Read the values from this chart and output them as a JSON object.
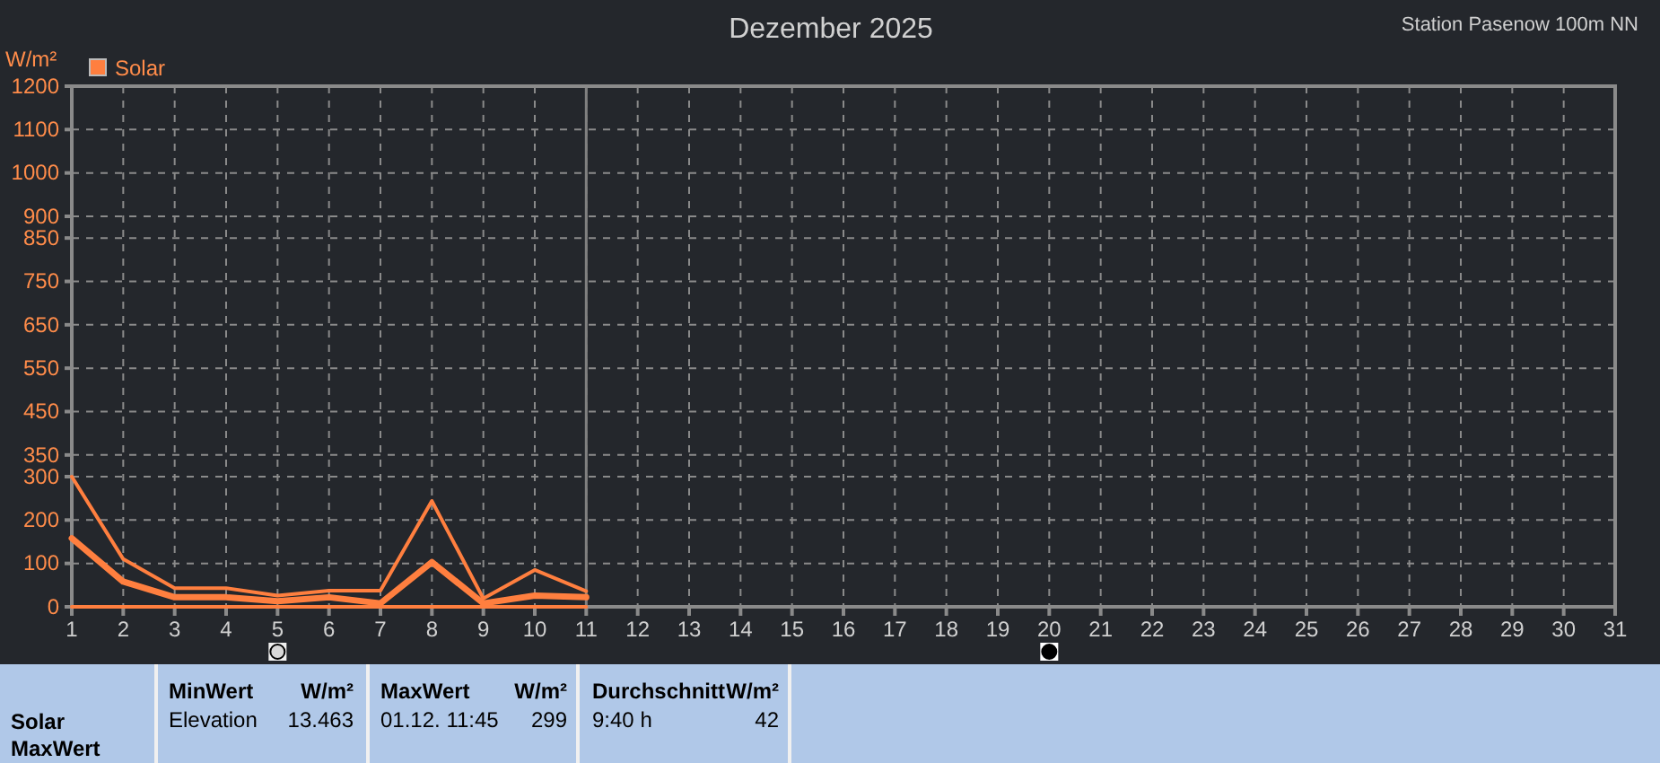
{
  "chart_data": {
    "type": "line",
    "title": "Dezember 2025",
    "ylabel": "W/m²",
    "x": [
      1,
      2,
      3,
      4,
      5,
      6,
      7,
      8,
      9,
      10,
      11
    ],
    "series": [
      {
        "name": "Solar",
        "color": "#ff7f3f",
        "values": [
          300,
          110,
          43,
          43,
          26,
          37,
          37,
          244,
          19,
          85,
          36
        ]
      },
      {
        "color": "#ff7f3f",
        "values": [
          158,
          58,
          22,
          22,
          13,
          22,
          8,
          103,
          8,
          26,
          22
        ]
      },
      {
        "color": "#ff7f3f",
        "values": [
          0,
          0,
          0,
          0,
          0,
          0,
          0,
          0,
          0,
          0,
          0
        ]
      }
    ],
    "xlim": [
      1,
      31
    ],
    "xticks": [
      1,
      2,
      3,
      4,
      5,
      6,
      7,
      8,
      9,
      10,
      11,
      12,
      13,
      14,
      15,
      16,
      17,
      18,
      19,
      20,
      21,
      22,
      23,
      24,
      25,
      26,
      27,
      28,
      29,
      30,
      31
    ],
    "ylim": [
      0,
      1200
    ],
    "yticks": [
      0,
      100,
      200,
      300,
      350,
      450,
      550,
      650,
      750,
      850,
      900,
      1000,
      1100,
      1200
    ],
    "grid": true,
    "legend": "top left",
    "marker": "none",
    "line_style": "solid",
    "ref_lines": [
      {
        "axis": "x",
        "value": 11,
        "color": "#808080",
        "line_style": "solid"
      }
    ],
    "annotations": [
      "Station Pasenow 100m NN",
      "Solar",
      "MaxWert",
      "MinWert",
      "W/m²",
      "Elevation",
      "13.463",
      "MaxWert",
      "W/m²",
      "01.12.  11:45",
      "299",
      "Durchschnitt",
      "W/m²",
      "9:40 h",
      "42"
    ]
  }
}
